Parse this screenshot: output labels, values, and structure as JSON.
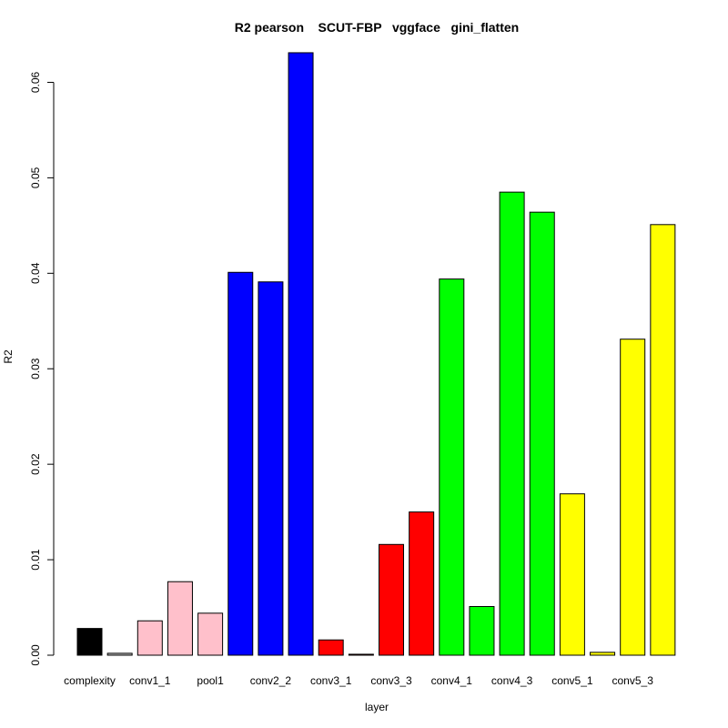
{
  "chart_data": {
    "type": "bar",
    "title": "R2 pearson    SCUT-FBP   vggface   gini_flatten",
    "xlabel": "layer",
    "ylabel": "R2",
    "ylim": [
      0,
      0.063
    ],
    "yticks": [
      "0.00",
      "0.01",
      "0.02",
      "0.03",
      "0.04",
      "0.05",
      "0.06"
    ],
    "grid": false,
    "categories": [
      "complexity",
      "",
      "conv1_1",
      "",
      "pool1",
      "",
      "conv2_2",
      "",
      "conv3_1",
      "",
      "conv3_3",
      "",
      "conv4_1",
      "",
      "conv4_3",
      "",
      "conv5_1",
      "",
      "conv5_3",
      ""
    ],
    "values": [
      0.0028,
      0.0002,
      0.0036,
      0.0077,
      0.0044,
      0.0401,
      0.0391,
      0.0631,
      0.0016,
      0.0001,
      0.0116,
      0.015,
      0.0394,
      0.0051,
      0.0485,
      0.0464,
      0.0169,
      0.0003,
      0.0331,
      0.0451
    ],
    "colors": [
      "#000000",
      "#bebebe",
      "#ffc0cb",
      "#ffc0cb",
      "#ffc0cb",
      "#0000ff",
      "#0000ff",
      "#0000ff",
      "#ff0000",
      "#ff0000",
      "#ff0000",
      "#ff0000",
      "#00ff00",
      "#00ff00",
      "#00ff00",
      "#00ff00",
      "#ffff00",
      "#ffff00",
      "#ffff00",
      "#ffff00"
    ]
  }
}
